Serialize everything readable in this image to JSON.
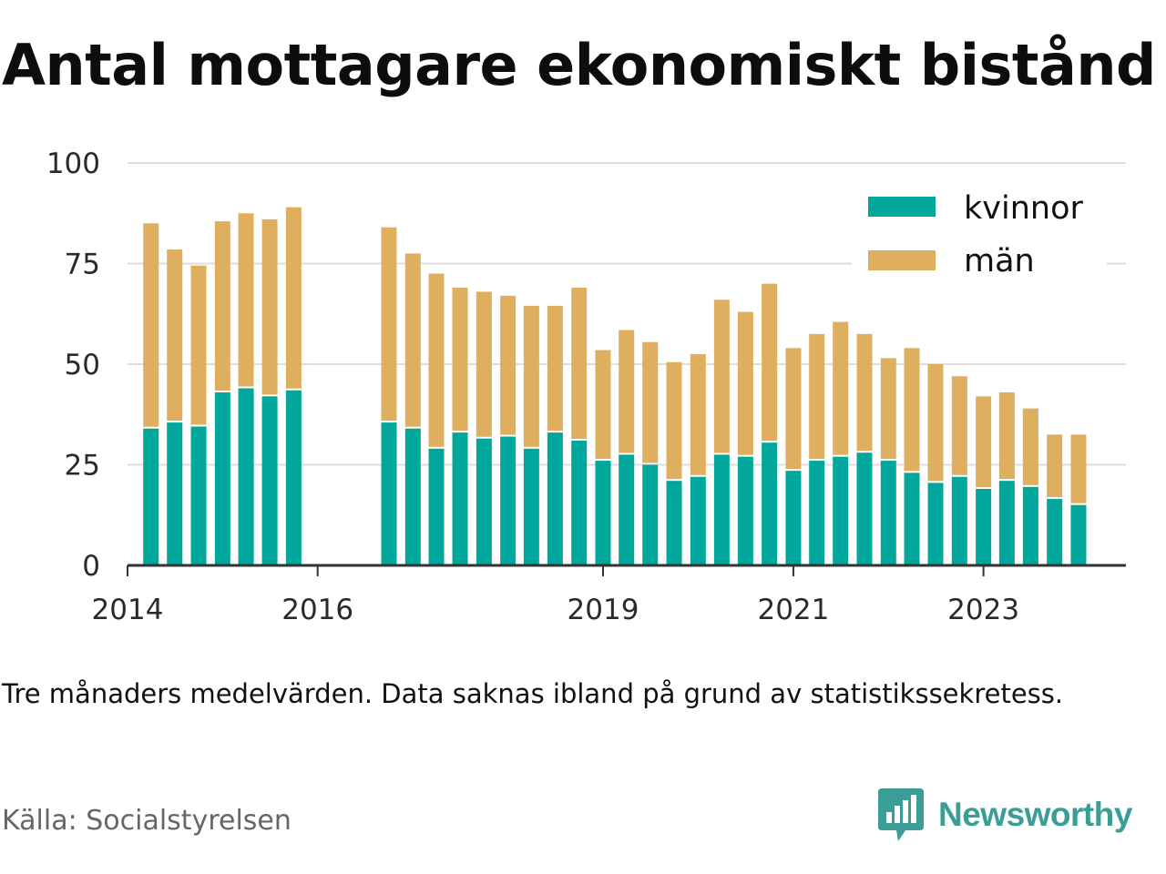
{
  "title": "Antal mottagare ekonomiskt bistånd",
  "note": "Tre månaders medelvärden. Data saknas ibland på grund av statistikssekretess.",
  "source": "Källa: Socialstyrelsen",
  "brand": {
    "name": "Newsworthy",
    "logo_icon": "newsworthy-bar-chart-speech-bubble-icon"
  },
  "colors": {
    "kvinnor": "#00a79a",
    "man": "#ddaf5f",
    "grid": "#dddddd",
    "axis": "#333333"
  },
  "chart_data": {
    "type": "bar",
    "stacked": true,
    "grid": true,
    "legend_position": "top-right",
    "ylim": [
      0,
      100
    ],
    "y_ticks": [
      0,
      25,
      50,
      75,
      100
    ],
    "x_tick_labels": [
      "2014",
      "2016",
      "2019",
      "2021",
      "2023"
    ],
    "x_range": [
      "2014-01-01",
      "2024-07-01"
    ],
    "x": [
      "2014-04-01",
      "2014-07-01",
      "2014-10-01",
      "2015-01-01",
      "2015-04-01",
      "2015-07-01",
      "2015-10-01",
      "2016-10-01",
      "2017-01-01",
      "2017-04-01",
      "2017-07-01",
      "2017-10-01",
      "2018-01-01",
      "2018-04-01",
      "2018-07-01",
      "2018-10-01",
      "2019-01-01",
      "2019-04-01",
      "2019-07-01",
      "2019-10-01",
      "2020-01-01",
      "2020-04-01",
      "2020-07-01",
      "2020-10-01",
      "2021-01-01",
      "2021-04-01",
      "2021-07-01",
      "2021-10-01",
      "2022-01-01",
      "2022-04-01",
      "2022-07-01",
      "2022-10-01",
      "2023-01-01",
      "2023-04-01",
      "2023-07-01",
      "2023-10-01",
      "2024-01-01"
    ],
    "series": [
      {
        "name": "kvinnor",
        "values": [
          34,
          35.5,
          34.5,
          43,
          44,
          42,
          43.5,
          35.5,
          34,
          29,
          33,
          31.5,
          32,
          29,
          33,
          31,
          26,
          27.5,
          25,
          21,
          22,
          27.5,
          27,
          30.5,
          23.5,
          26,
          27,
          28,
          26,
          23,
          20.5,
          22,
          19,
          21,
          19.5,
          16.5,
          15
        ]
      },
      {
        "name": "män",
        "values": [
          51,
          43,
          40,
          42.5,
          43.5,
          44,
          45.5,
          48.5,
          43.5,
          43.5,
          36,
          36.5,
          35,
          35.5,
          31.5,
          38,
          27.5,
          31,
          30.5,
          29.5,
          30.5,
          38.5,
          36,
          39.5,
          30.5,
          31.5,
          33.5,
          29.5,
          25.5,
          31,
          29.5,
          25,
          23,
          22,
          19.5,
          16,
          17.5
        ]
      }
    ]
  }
}
